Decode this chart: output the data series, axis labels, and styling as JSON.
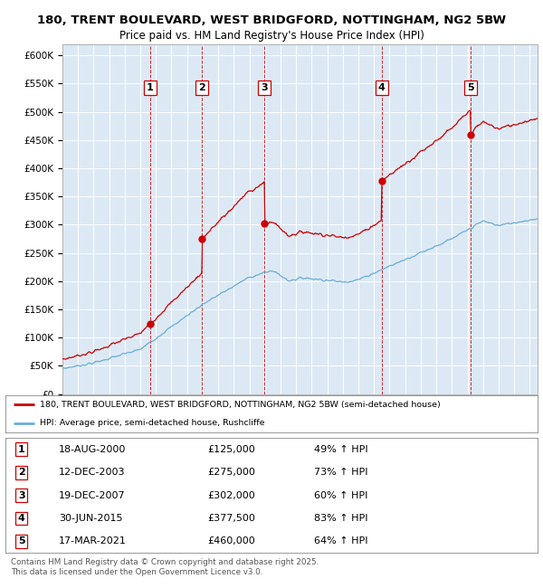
{
  "title_line1": "180, TRENT BOULEVARD, WEST BRIDGFORD, NOTTINGHAM, NG2 5BW",
  "title_line2": "Price paid vs. HM Land Registry's House Price Index (HPI)",
  "background_color": "#dce9f5",
  "plot_bg_color": "#dce9f5",
  "ylim": [
    0,
    620000
  ],
  "yticks": [
    0,
    50000,
    100000,
    150000,
    200000,
    250000,
    300000,
    350000,
    400000,
    450000,
    500000,
    550000,
    600000
  ],
  "ytick_labels": [
    "£0",
    "£50K",
    "£100K",
    "£150K",
    "£200K",
    "£250K",
    "£300K",
    "£350K",
    "£400K",
    "£450K",
    "£500K",
    "£550K",
    "£600K"
  ],
  "sale_dates_num": [
    2000.63,
    2003.95,
    2007.97,
    2015.5,
    2021.21
  ],
  "sale_prices": [
    125000,
    275000,
    302000,
    377500,
    460000
  ],
  "sale_labels": [
    "1",
    "2",
    "3",
    "4",
    "5"
  ],
  "sale_date_strings": [
    "18-AUG-2000",
    "12-DEC-2003",
    "19-DEC-2007",
    "30-JUN-2015",
    "17-MAR-2021"
  ],
  "sale_hpi_pct": [
    "49% ↑ HPI",
    "73% ↑ HPI",
    "60% ↑ HPI",
    "83% ↑ HPI",
    "64% ↑ HPI"
  ],
  "hpi_color": "#6baed6",
  "price_color": "#cc0000",
  "vline_color": "#cc0000",
  "legend_label_price": "180, TRENT BOULEVARD, WEST BRIDGFORD, NOTTINGHAM, NG2 5BW (semi-detached house)",
  "legend_label_hpi": "HPI: Average price, semi-detached house, Rushcliffe",
  "footer_text": "Contains HM Land Registry data © Crown copyright and database right 2025.\nThis data is licensed under the Open Government Licence v3.0.",
  "xmin": 1995.0,
  "xmax": 2025.5
}
